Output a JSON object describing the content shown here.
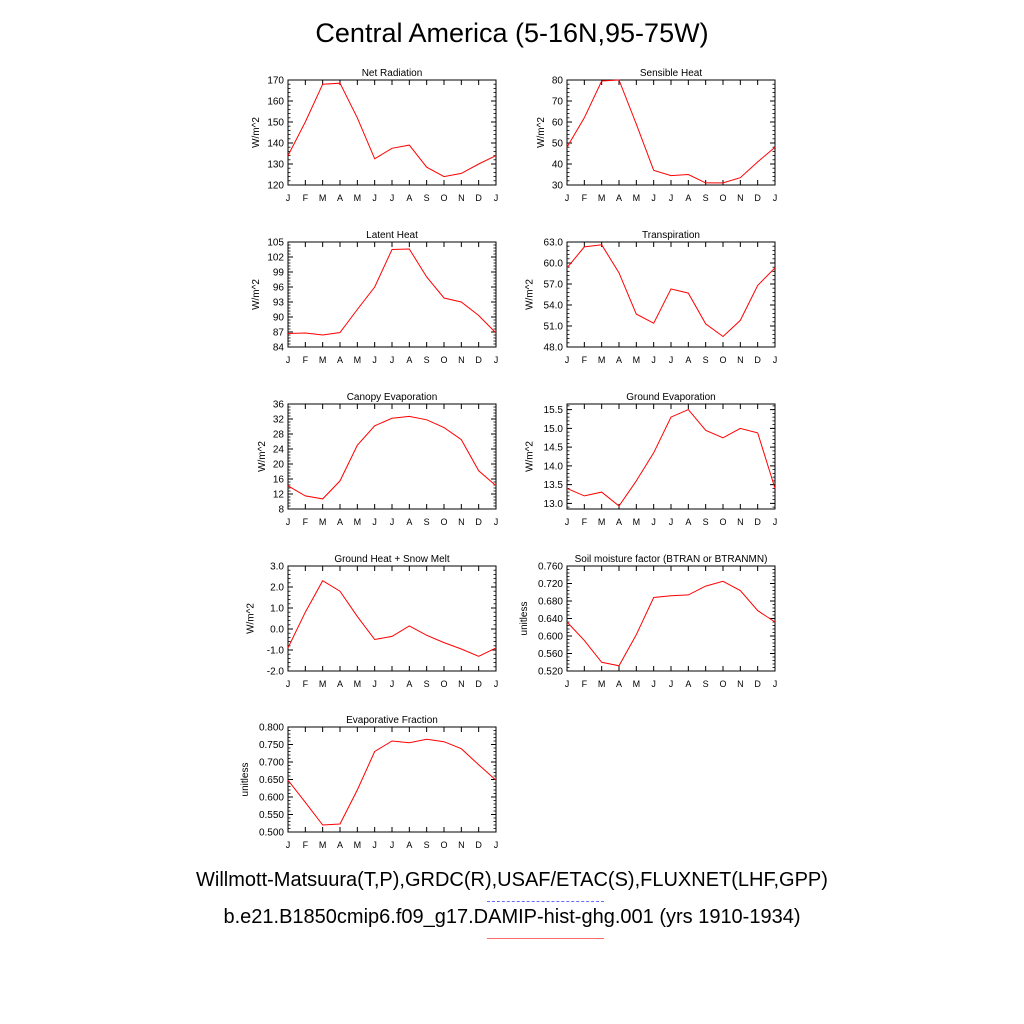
{
  "title": "Central America (5-16N,95-75W)",
  "legend": {
    "observed": "Willmott-Matsuura(T,P),GRDC(R),USAF/ETAC(S),FLUXNET(LHF,GPP)",
    "model": "b.e21.B1850cmip6.f09_g17.DAMIP-hist-ghg.001 (yrs 1910-1934)",
    "observed_color": "#6a6aff",
    "model_color": "#ff0000"
  },
  "chart_data": [
    {
      "type": "line",
      "title": "Net Radiation",
      "ylabel": "W/m^2",
      "categories": [
        "J",
        "F",
        "M",
        "A",
        "M",
        "J",
        "J",
        "A",
        "S",
        "O",
        "N",
        "D",
        "J"
      ],
      "ylim": [
        120,
        170
      ],
      "yticks": [
        "120",
        "130",
        "140",
        "150",
        "160",
        "170"
      ],
      "series": [
        {
          "values": [
            134,
            150,
            168,
            168.5,
            152,
            132.5,
            137.5,
            139,
            128.5,
            124,
            125.5,
            130,
            134
          ],
          "color": "#ff0000"
        }
      ]
    },
    {
      "type": "line",
      "title": "Sensible Heat",
      "ylabel": "W/m^2",
      "categories": [
        "J",
        "F",
        "M",
        "A",
        "M",
        "J",
        "J",
        "A",
        "S",
        "O",
        "N",
        "D",
        "J"
      ],
      "ylim": [
        30,
        80
      ],
      "yticks": [
        "30",
        "40",
        "50",
        "60",
        "70",
        "80"
      ],
      "series": [
        {
          "values": [
            48,
            62,
            79.5,
            80,
            59,
            37,
            34.5,
            35,
            31,
            31,
            33.5,
            41,
            48
          ],
          "color": "#ff0000"
        }
      ]
    },
    {
      "type": "line",
      "title": "Latent Heat",
      "ylabel": "W/m^2",
      "categories": [
        "J",
        "F",
        "M",
        "A",
        "M",
        "J",
        "J",
        "A",
        "S",
        "O",
        "N",
        "D",
        "J"
      ],
      "ylim": [
        84,
        105
      ],
      "yticks": [
        "84",
        "87",
        "90",
        "93",
        "96",
        "99",
        "102",
        "105"
      ],
      "series": [
        {
          "values": [
            86.7,
            86.8,
            86.4,
            86.9,
            91.5,
            96,
            103.5,
            103.6,
            98,
            93.8,
            93,
            90.3,
            86.8
          ],
          "color": "#ff0000"
        }
      ]
    },
    {
      "type": "line",
      "title": "Transpiration",
      "ylabel": "W/m^2",
      "categories": [
        "J",
        "F",
        "M",
        "A",
        "M",
        "J",
        "J",
        "A",
        "S",
        "O",
        "N",
        "D",
        "J"
      ],
      "ylim": [
        48,
        63
      ],
      "yticks": [
        "48.0",
        "51.0",
        "54.0",
        "57.0",
        "60.0",
        "63.0"
      ],
      "series": [
        {
          "values": [
            59.3,
            62.3,
            62.6,
            58.6,
            52.7,
            51.4,
            56.3,
            55.7,
            51.3,
            49.5,
            51.8,
            56.8,
            59.3
          ],
          "color": "#ff0000"
        }
      ]
    },
    {
      "type": "line",
      "title": "Canopy Evaporation",
      "ylabel": "W/m^2",
      "categories": [
        "J",
        "F",
        "M",
        "A",
        "M",
        "J",
        "J",
        "A",
        "S",
        "O",
        "N",
        "D",
        "J"
      ],
      "ylim": [
        8,
        36
      ],
      "yticks": [
        "8",
        "12",
        "16",
        "20",
        "24",
        "28",
        "32",
        "36"
      ],
      "series": [
        {
          "values": [
            14.2,
            11.5,
            10.7,
            15.5,
            25,
            30.2,
            32.2,
            32.7,
            31.8,
            29.7,
            26.5,
            18.2,
            14.2
          ],
          "color": "#ff0000"
        }
      ]
    },
    {
      "type": "line",
      "title": "Ground Evaporation",
      "ylabel": "W/m^2",
      "categories": [
        "J",
        "F",
        "M",
        "A",
        "M",
        "J",
        "J",
        "A",
        "S",
        "O",
        "N",
        "D",
        "J"
      ],
      "ylim": [
        12.85,
        15.65
      ],
      "yticks": [
        "13.0",
        "13.5",
        "14.0",
        "14.5",
        "15.0",
        "15.5"
      ],
      "series": [
        {
          "values": [
            13.4,
            13.2,
            13.3,
            12.93,
            13.6,
            14.35,
            15.3,
            15.5,
            14.95,
            14.75,
            15,
            14.88,
            13.4
          ],
          "color": "#ff0000"
        }
      ]
    },
    {
      "type": "line",
      "title": "Ground Heat + Snow Melt",
      "ylabel": "W/m^2",
      "categories": [
        "J",
        "F",
        "M",
        "A",
        "M",
        "J",
        "J",
        "A",
        "S",
        "O",
        "N",
        "D",
        "J"
      ],
      "ylim": [
        -2,
        3
      ],
      "yticks": [
        "-2.0",
        "-1.0",
        "0.0",
        "1.0",
        "2.0",
        "3.0"
      ],
      "series": [
        {
          "values": [
            -0.9,
            0.8,
            2.3,
            1.8,
            0.6,
            -0.5,
            -0.35,
            0.15,
            -0.3,
            -0.65,
            -0.95,
            -1.3,
            -0.9
          ],
          "color": "#ff0000"
        }
      ]
    },
    {
      "type": "line",
      "title": "Soil moisture factor (BTRAN or BTRANMN)",
      "ylabel": "unitless",
      "categories": [
        "J",
        "F",
        "M",
        "A",
        "M",
        "J",
        "J",
        "A",
        "S",
        "O",
        "N",
        "D",
        "J"
      ],
      "ylim": [
        0.52,
        0.76
      ],
      "yticks": [
        "0.520",
        "0.560",
        "0.600",
        "0.640",
        "0.680",
        "0.720",
        "0.760"
      ],
      "series": [
        {
          "values": [
            0.632,
            0.59,
            0.54,
            0.532,
            0.603,
            0.688,
            0.692,
            0.694,
            0.714,
            0.725,
            0.704,
            0.658,
            0.632
          ],
          "color": "#ff0000"
        }
      ]
    },
    {
      "type": "line",
      "title": "Evaporative Fraction",
      "ylabel": "unitless",
      "categories": [
        "J",
        "F",
        "M",
        "A",
        "M",
        "J",
        "J",
        "A",
        "S",
        "O",
        "N",
        "D",
        "J"
      ],
      "ylim": [
        0.5,
        0.8
      ],
      "yticks": [
        "0.500",
        "0.550",
        "0.600",
        "0.650",
        "0.700",
        "0.750",
        "0.800"
      ],
      "series": [
        {
          "values": [
            0.648,
            0.585,
            0.52,
            0.523,
            0.62,
            0.73,
            0.76,
            0.755,
            0.765,
            0.758,
            0.738,
            0.692,
            0.648
          ],
          "color": "#ff0000"
        }
      ]
    }
  ]
}
